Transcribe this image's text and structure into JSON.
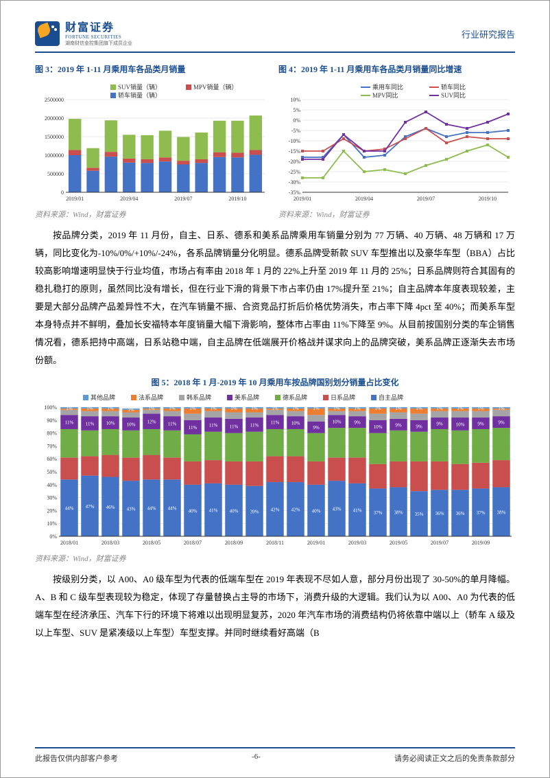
{
  "header": {
    "logo_cn": "财富证券",
    "logo_en": "FORTUNE SECURITIES",
    "logo_sub": "湖南财信金控集团旗下成员企业",
    "right": "行业研究报告"
  },
  "chart3": {
    "title": "图 3：2019 年 1-11 月乘用车各品类月销量",
    "type": "bar-stacked",
    "legend": [
      "SUV销量（辆）",
      "MPV销量（辆）",
      "轿车销量（辆）"
    ],
    "legend_colors": [
      "#8fbc4f",
      "#c94f4f",
      "#4472c4"
    ],
    "xlabels": [
      "2019/01",
      "2019/04",
      "2019/07",
      "2019/10"
    ],
    "ylim": [
      0,
      2500000
    ],
    "ytick": 500000,
    "categories": [
      "2019/01",
      "2019/02",
      "2019/03",
      "2019/04",
      "2019/05",
      "2019/06",
      "2019/07",
      "2019/08",
      "2019/09",
      "2019/10",
      "2019/11"
    ],
    "series": {
      "sedan": [
        1000000,
        580000,
        960000,
        800000,
        790000,
        830000,
        750000,
        790000,
        950000,
        940000,
        1010000
      ],
      "mpv": [
        140000,
        80000,
        130000,
        110000,
        100000,
        110000,
        100000,
        100000,
        130000,
        130000,
        130000
      ],
      "suv": [
        840000,
        530000,
        850000,
        640000,
        650000,
        720000,
        640000,
        720000,
        850000,
        860000,
        930000
      ]
    },
    "colors": {
      "sedan": "#4472c4",
      "mpv": "#c94f4f",
      "suv": "#8fbc4f"
    },
    "bg": "#ffffff",
    "grid": "#d0d0d0",
    "axis_fontsize": 9
  },
  "chart4": {
    "title": "图 4：2019 年 1-11 月乘用车各品类月销量同比增速",
    "type": "line",
    "legend": [
      "乘用车同比",
      "轿车同比",
      "MPV同比",
      "SUV同比"
    ],
    "legend_colors": [
      "#4472c4",
      "#c94f4f",
      "#8fbc4f",
      "#7030a0"
    ],
    "xlabels": [
      "2019/01",
      "2019/04",
      "2019/07",
      "2019/10"
    ],
    "ylim": [
      -35,
      10
    ],
    "ytick": 5,
    "categories": [
      "2019/01",
      "2019/02",
      "2019/03",
      "2019/04",
      "2019/05",
      "2019/06",
      "2019/07",
      "2019/08",
      "2019/09",
      "2019/10",
      "2019/11"
    ],
    "series": {
      "passenger": [
        -18,
        -18,
        -7,
        -18,
        -17,
        -8,
        -4,
        -8,
        -6,
        -6,
        -5
      ],
      "sedan": [
        -15,
        -15,
        -9,
        -15,
        -14,
        -9,
        -4,
        -11,
        -8,
        -9,
        -9
      ],
      "mpv": [
        -28,
        -28,
        -15,
        -25,
        -24,
        -26,
        -22,
        -19,
        -15,
        -12,
        -18
      ],
      "suv": [
        -19,
        -19,
        -7,
        -15,
        -15,
        -1,
        4,
        -2,
        -4,
        -1,
        3
      ]
    },
    "bg": "#ffffff",
    "grid": "#d0d0d0",
    "axis_fontsize": 9
  },
  "source": "资料来源：Wind，财富证券",
  "para1": "按品牌分类，2019 年 11 月份，自主、日系、德系和美系品牌乘用车销量分别为 77 万辆、40 万辆、48 万辆和 17 万辆，同比变化为-10%/0%/+10%/-24%，各系品牌销量分化明显。德系品牌受新款 SUV 车型推出以及豪华车型（BBA）占比较高影响增速明显快于行业均值，市场占有率由 2018 年 1 月的 22%上升至 2019 年 11 月的 25%；日系品牌则符合其固有的稳扎稳打的原则，虽然同比没有增长，但在行业下滑的背景下市占率仍由 17%提升至 21%；自主品牌本年度表现较差，主要是大部分品牌产品差异性不大，在汽车销量不振、合资竞品打折后价格优势消失，市占率下降 4pct 至 40%；而美系车型本身特点并不鲜明，叠加长安福特本年度销量大幅下滑影响，整体市占率由 11%下降至 9%。从目前按国别分类的车企销售情况看，德系把持中高端，日系站稳中端，自主品牌在低端展开价格战并谋求向上的品牌突破，美系品牌正逐渐失去市场份额。",
  "chart5": {
    "title": "图 5：2018 年 1 月-2019 年 10 月乘用车按品牌国别划分销量占比变化",
    "type": "bar-stacked-pct",
    "legend": [
      "其他品牌",
      "法系品牌",
      "韩系品牌",
      "美系品牌",
      "德系品牌",
      "日系品牌",
      "自主品牌"
    ],
    "legend_colors": [
      "#5b9bd5",
      "#ed7d31",
      "#a5a5a5",
      "#7030a0",
      "#70ad47",
      "#c94f4f",
      "#4472c4"
    ],
    "xlabels": [
      "2018/01",
      "2018/03",
      "2018/05",
      "2018/07",
      "2018/09",
      "2018/11",
      "2019/01",
      "2019/03",
      "2019/05",
      "2019/07",
      "2019/09"
    ],
    "ylim": [
      0,
      100
    ],
    "ytick": 10,
    "n_bars": 22,
    "stacks": [
      [
        44,
        17,
        22,
        11,
        4,
        1,
        1
      ],
      [
        47,
        15,
        20,
        11,
        4,
        2,
        1
      ],
      [
        46,
        17,
        20,
        10,
        4,
        2,
        1
      ],
      [
        43,
        18,
        21,
        10,
        4,
        2,
        1
      ],
      [
        44,
        19,
        20,
        12,
        3,
        1,
        1
      ],
      [
        44,
        17,
        21,
        11,
        4,
        2,
        1
      ],
      [
        40,
        18,
        21,
        11,
        5,
        4,
        1
      ],
      [
        41,
        18,
        22,
        11,
        5,
        2,
        1
      ],
      [
        40,
        18,
        22,
        11,
        5,
        3,
        1
      ],
      [
        39,
        19,
        23,
        11,
        4,
        3,
        1
      ],
      [
        42,
        20,
        21,
        11,
        4,
        1,
        1
      ],
      [
        42,
        20,
        21,
        10,
        4,
        2,
        1
      ],
      [
        40,
        18,
        22,
        9,
        5,
        5,
        1
      ],
      [
        43,
        18,
        23,
        10,
        3,
        2,
        1
      ],
      [
        41,
        20,
        23,
        9,
        4,
        2,
        1
      ],
      [
        37,
        19,
        24,
        10,
        5,
        4,
        1
      ],
      [
        38,
        20,
        24,
        9,
        5,
        3,
        1
      ],
      [
        35,
        23,
        23,
        9,
        5,
        4,
        1
      ],
      [
        36,
        22,
        25,
        9,
        5,
        2,
        1
      ],
      [
        36,
        20,
        26,
        10,
        5,
        2,
        1
      ],
      [
        37,
        20,
        26,
        9,
        5,
        2,
        1
      ],
      [
        38,
        21,
        25,
        9,
        5,
        1,
        1
      ]
    ],
    "label_indices": [
      0,
      3,
      6
    ],
    "bg": "#ffffff",
    "grid": "#d0d0d0",
    "axis_fontsize": 9
  },
  "para2": "按级别分类，以 A00、A0 级车型为代表的低端车型在 2019 年表现不尽如人意，部分月份出现了 30-50%的单月降幅。A、B 和 C 级车型表现较为稳定，体现了存量替换占主导的市场下，消费升级的大逻辑。我们认为以 A00、A0 为代表的低端车型在经济承压、汽车下行的环境下将难以出现明显复苏，2020 年汽车市场的消费结构仍将依靠中端以上（轿车 A 级及以上车型、SUV 是紧凑级以上车型）车型支撑。并同时继续看好高端（B",
  "footer": {
    "left": "此报告仅供内部客户参考",
    "center": "-6-",
    "right": "请务必阅读正文之后的免责条款部分"
  }
}
